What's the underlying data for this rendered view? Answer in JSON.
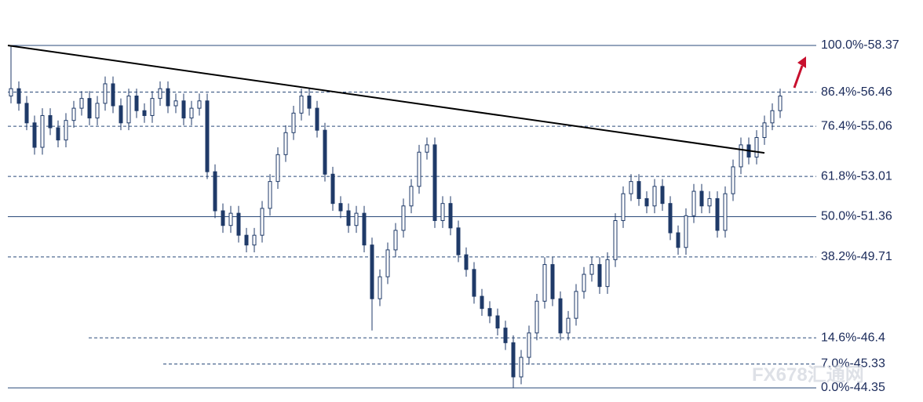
{
  "chart_data": {
    "type": "candlestick",
    "color": "#1f3a68",
    "ylim": [
      44.35,
      58.37
    ],
    "open": [
      56.3,
      56.6,
      56.0,
      55.2,
      54.2,
      55.5,
      55.0,
      54.5,
      55.3,
      55.8,
      56.2,
      55.4,
      56.0,
      56.8,
      55.9,
      55.2,
      56.3,
      55.7,
      55.5,
      56.2,
      56.6,
      55.9,
      56.1,
      55.4,
      55.8,
      56.1,
      53.2,
      51.6,
      51.0,
      51.5,
      50.6,
      50.2,
      50.6,
      51.7,
      52.8,
      53.9,
      54.8,
      55.6,
      56.3,
      55.8,
      54.9,
      53.1,
      51.9,
      51.6,
      51.0,
      51.5,
      50.2,
      48.0,
      48.9,
      50.0,
      50.8,
      51.8,
      52.6,
      54.0,
      54.3,
      51.2,
      51.9,
      50.9,
      49.8,
      49.2,
      48.1,
      47.6,
      47.3,
      46.8,
      46.2,
      44.8,
      45.6,
      46.6,
      47.9,
      49.4,
      48.0,
      46.6,
      47.2,
      48.3,
      49.0,
      49.4,
      48.5,
      49.6,
      51.2,
      52.3,
      52.8,
      52.1,
      51.8,
      52.6,
      51.9,
      50.7,
      50.1,
      51.4,
      52.4,
      51.8,
      52.1,
      50.8,
      52.3,
      53.4,
      54.3,
      53.8,
      54.6,
      55.2,
      55.7
    ],
    "high": [
      58.37,
      56.9,
      56.3,
      55.5,
      55.8,
      55.8,
      55.3,
      55.6,
      56.1,
      56.5,
      56.5,
      56.3,
      57.1,
      57.1,
      56.2,
      56.6,
      56.6,
      56.0,
      56.5,
      56.9,
      56.9,
      56.4,
      56.4,
      56.1,
      56.4,
      56.4,
      53.5,
      51.9,
      51.8,
      51.8,
      50.9,
      50.9,
      52.0,
      53.1,
      54.2,
      55.1,
      55.9,
      56.6,
      56.6,
      56.1,
      55.2,
      53.4,
      52.2,
      51.9,
      51.8,
      51.8,
      50.5,
      49.2,
      50.3,
      51.1,
      52.1,
      52.9,
      54.3,
      54.6,
      54.6,
      52.2,
      52.2,
      51.2,
      50.1,
      49.5,
      48.4,
      47.9,
      47.6,
      47.1,
      46.5,
      45.9,
      46.9,
      48.2,
      49.7,
      49.7,
      48.3,
      47.5,
      48.6,
      49.3,
      49.7,
      49.7,
      49.9,
      51.5,
      52.6,
      53.1,
      53.1,
      52.4,
      52.9,
      52.9,
      52.2,
      51.0,
      51.7,
      52.7,
      52.7,
      52.4,
      52.4,
      52.6,
      53.7,
      54.6,
      54.6,
      54.9,
      55.5,
      56.0,
      56.6
    ],
    "low": [
      56.0,
      55.7,
      54.9,
      53.9,
      53.9,
      54.7,
      54.2,
      54.2,
      55.0,
      55.5,
      55.1,
      55.1,
      55.7,
      55.6,
      54.9,
      54.9,
      55.4,
      55.2,
      55.2,
      55.9,
      55.6,
      55.6,
      55.1,
      55.1,
      55.5,
      52.9,
      51.3,
      50.7,
      50.7,
      50.3,
      49.9,
      49.9,
      50.3,
      51.4,
      52.5,
      53.6,
      54.5,
      55.3,
      55.5,
      54.6,
      52.8,
      51.6,
      51.3,
      50.7,
      50.7,
      49.9,
      46.7,
      47.7,
      48.6,
      49.7,
      50.5,
      51.5,
      52.3,
      53.7,
      50.9,
      50.9,
      50.6,
      49.5,
      48.9,
      47.8,
      47.3,
      47.0,
      46.5,
      45.9,
      44.35,
      44.5,
      45.3,
      46.3,
      47.6,
      47.7,
      46.3,
      46.3,
      46.9,
      48.0,
      48.7,
      48.2,
      48.2,
      49.3,
      50.9,
      52.0,
      51.8,
      51.5,
      51.5,
      51.6,
      50.4,
      49.8,
      49.8,
      51.1,
      51.5,
      51.5,
      50.5,
      50.5,
      52.0,
      53.1,
      53.5,
      53.5,
      54.3,
      54.9,
      55.4
    ],
    "close": [
      56.6,
      56.0,
      55.2,
      54.2,
      55.5,
      55.0,
      54.5,
      55.3,
      55.8,
      56.2,
      55.4,
      56.0,
      56.8,
      55.9,
      55.2,
      56.3,
      55.7,
      55.5,
      56.2,
      56.6,
      55.9,
      56.1,
      55.4,
      55.8,
      56.1,
      53.2,
      51.6,
      51.0,
      51.5,
      50.6,
      50.2,
      50.6,
      51.7,
      52.8,
      53.9,
      54.8,
      55.6,
      56.3,
      55.8,
      54.9,
      53.1,
      51.9,
      51.6,
      51.0,
      51.5,
      50.2,
      48.0,
      48.9,
      50.0,
      50.8,
      51.8,
      52.6,
      54.0,
      54.3,
      51.2,
      51.9,
      50.9,
      49.8,
      49.2,
      48.1,
      47.6,
      47.3,
      46.8,
      46.2,
      44.8,
      45.6,
      46.6,
      47.9,
      49.4,
      48.0,
      46.6,
      47.2,
      48.3,
      49.0,
      49.4,
      48.5,
      49.6,
      51.2,
      52.3,
      52.8,
      52.1,
      51.8,
      52.6,
      51.9,
      50.7,
      50.1,
      51.4,
      52.4,
      51.8,
      52.1,
      50.8,
      52.3,
      53.4,
      54.3,
      53.8,
      54.6,
      55.2,
      55.7,
      56.3
    ],
    "levels": [
      {
        "value": 58.37,
        "label": "100.0%-58.37",
        "dashed": false
      },
      {
        "value": 56.46,
        "label": "86.4%-56.46",
        "dashed": true
      },
      {
        "value": 55.06,
        "label": "76.4%-55.06",
        "dashed": true
      },
      {
        "value": 53.01,
        "label": "61.8%-53.01",
        "dashed": true
      },
      {
        "value": 51.36,
        "label": "50.0%-51.36",
        "dashed": false
      },
      {
        "value": 49.71,
        "label": "38.2%-49.71",
        "dashed": true
      },
      {
        "value": 46.4,
        "label": "14.6%-46.4",
        "dashed": true
      },
      {
        "value": 45.33,
        "label": "7.0%-45.33",
        "dashed": true
      },
      {
        "value": 44.35,
        "label": "0.0%-44.35",
        "dashed": false
      }
    ],
    "trendline": {
      "start": [
        0,
        58.37
      ],
      "end": [
        96,
        53.97
      ],
      "color": "#000000"
    },
    "watermark": "FX678汇通网"
  }
}
